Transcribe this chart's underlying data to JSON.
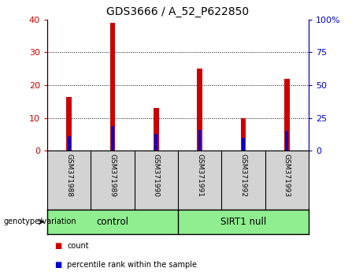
{
  "title": "GDS3666 / A_52_P622850",
  "samples": [
    "GSM371988",
    "GSM371989",
    "GSM371990",
    "GSM371991",
    "GSM371992",
    "GSM371993"
  ],
  "count_values": [
    16.5,
    39,
    13,
    25,
    10,
    22
  ],
  "percentile_values": [
    11,
    18.5,
    13,
    15.5,
    10,
    15
  ],
  "control_label": "control",
  "sirt1_label": "SIRT1 null",
  "genotype_label": "genotype/variation",
  "left_axis_color": "#cc0000",
  "right_axis_color": "#0000cc",
  "bar_color_count": "#cc0000",
  "bar_color_pct": "#0000cc",
  "left_ylim": [
    0,
    40
  ],
  "right_ylim": [
    0,
    100
  ],
  "left_yticks": [
    0,
    10,
    20,
    30,
    40
  ],
  "right_yticks": [
    0,
    25,
    50,
    75,
    100
  ],
  "right_yticklabels": [
    "0",
    "25",
    "50",
    "75",
    "100%"
  ],
  "control_box_color": "#90ee90",
  "label_box_color": "#d3d3d3",
  "legend_count_label": "count",
  "legend_pct_label": "percentile rank within the sample"
}
